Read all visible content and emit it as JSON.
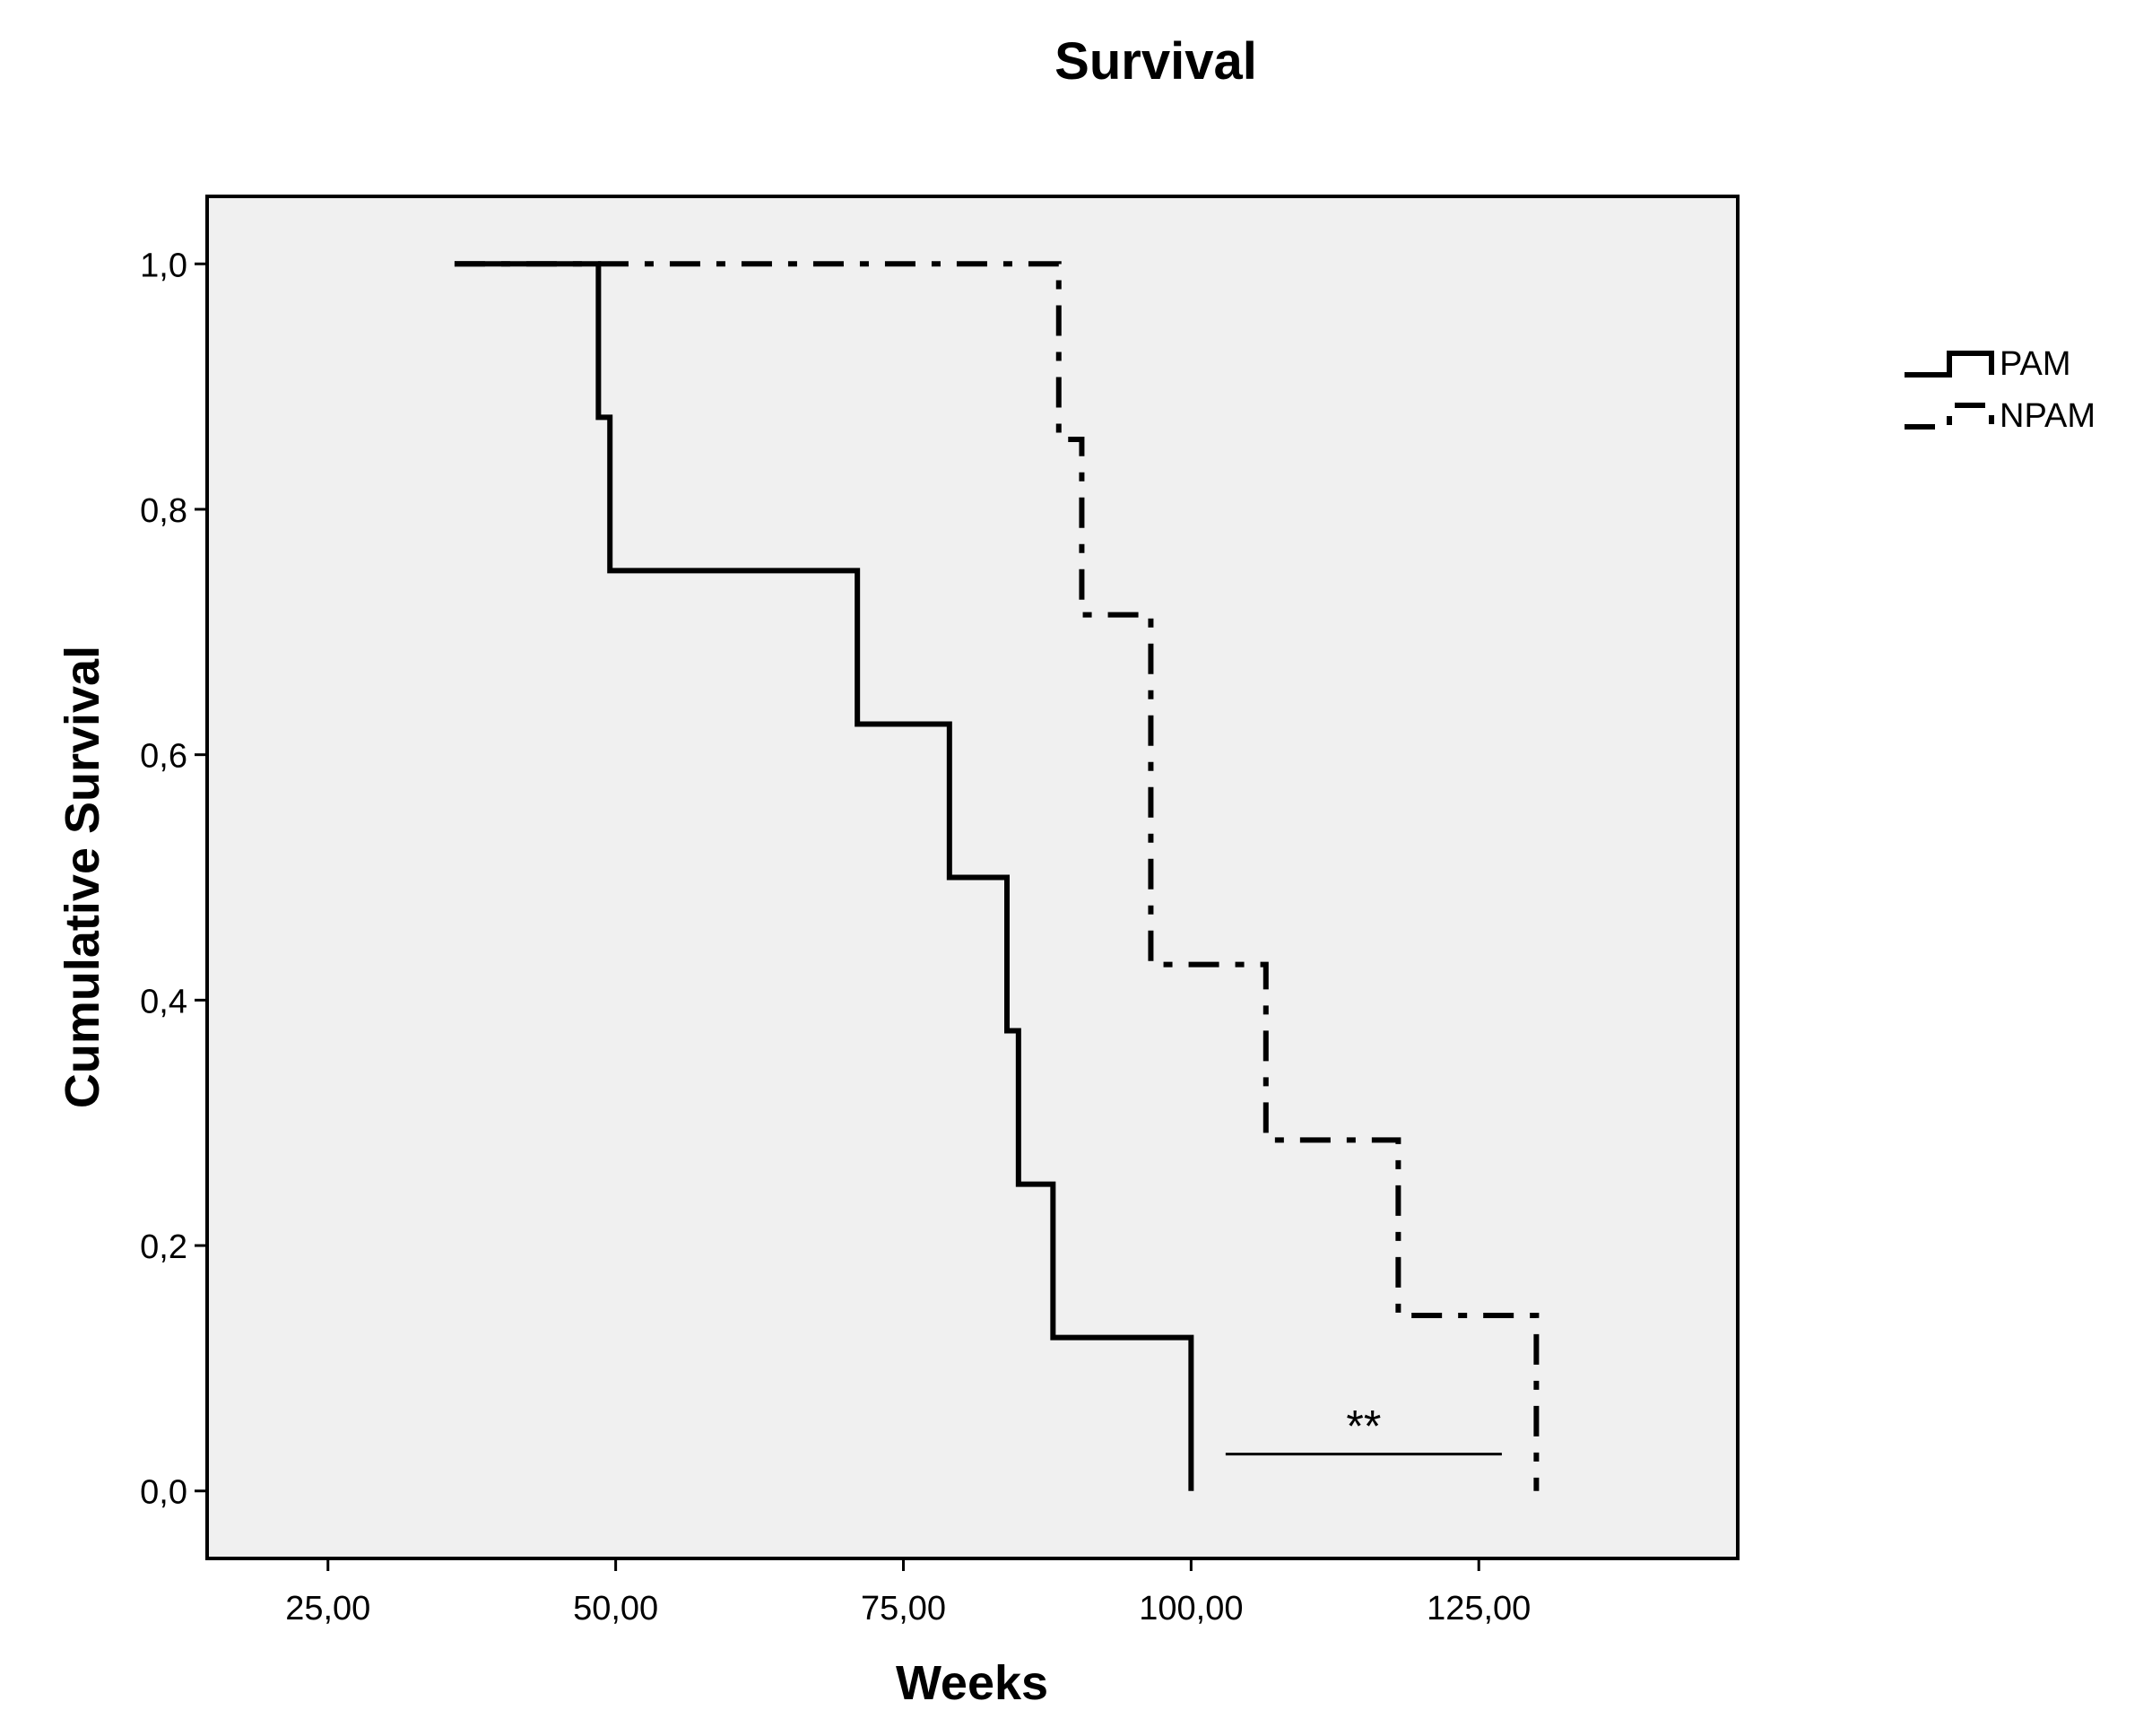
{
  "chart_data": {
    "type": "line",
    "subtype": "kaplan-meier step",
    "title": "Survival",
    "xlabel": "Weeks",
    "ylabel": "Cumulative Survival",
    "xlim": [
      14.5,
      147.5
    ],
    "ylim": [
      -0.055,
      1.055
    ],
    "xticks": [
      25,
      50,
      75,
      100,
      125
    ],
    "xtick_labels": [
      "25,00",
      "50,00",
      "75,00",
      "100,00",
      "125,00"
    ],
    "yticks": [
      0,
      0.2,
      0.4,
      0.6,
      0.8,
      1.0
    ],
    "ytick_labels": [
      "0,0",
      "0,2",
      "0,4",
      "0,6",
      "0,8",
      "1,0"
    ],
    "grid": false,
    "legend_position": "right",
    "series": [
      {
        "name": "PAM",
        "line_style": "solid",
        "color": "#000000",
        "x": [
          36,
          48.5,
          49.5,
          71,
          79,
          84,
          85,
          88,
          100,
          100
        ],
        "y": [
          1.0,
          0.875,
          0.75,
          0.625,
          0.5,
          0.375,
          0.25,
          0.125,
          0.125,
          0.0
        ]
      },
      {
        "name": "NPAM",
        "line_style": "dash-dot",
        "color": "#000000",
        "x": [
          36,
          88.5,
          90.5,
          96.5,
          106.5,
          118,
          130,
          130
        ],
        "y": [
          1.0,
          0.857,
          0.714,
          0.429,
          0.286,
          0.143,
          0.143,
          0.0
        ]
      }
    ],
    "annotations": [
      {
        "text": "**",
        "x_from": 103,
        "x_to": 127,
        "y": 0.03
      }
    ]
  },
  "colors": {
    "plot_background": "#f0f0f0",
    "frame": "#000000",
    "page_background": "#ffffff"
  }
}
